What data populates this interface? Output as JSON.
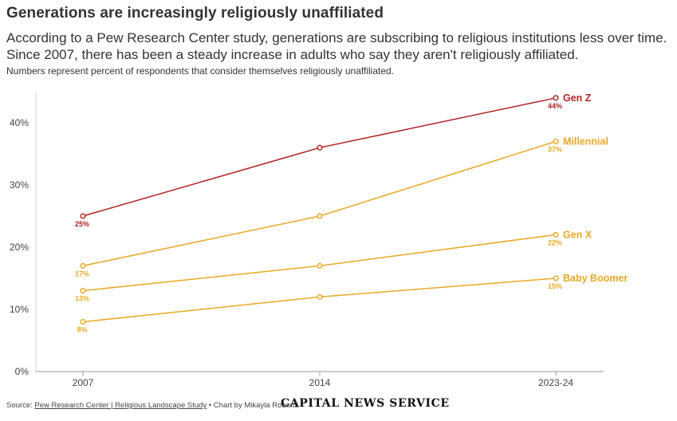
{
  "header": {
    "title": "Generations are increasingly religiously unaffiliated",
    "subtitle": "According to a Pew Research Center study, generations are subscribing to religious institutions less over time. Since 2007, there has been a steady increase in adults who say they aren't religiously affiliated.",
    "note": "Numbers represent percent of respondents that consider themselves religiously unaffiliated."
  },
  "footer": {
    "source_prefix": "Source: ",
    "source_link": "Pew Research Center | Religious Landscape Study",
    "credit": " • Chart by Mikayla Roberts",
    "brand": "CAPITAL NEWS SERVICE"
  },
  "chart_data": {
    "type": "line",
    "x": [
      "2007",
      "2014",
      "2023-24"
    ],
    "ylim": [
      0,
      45
    ],
    "yticks": [
      0,
      10,
      20,
      30,
      40
    ],
    "ytick_labels": [
      "0%",
      "10%",
      "20%",
      "30%",
      "40%"
    ],
    "grid": false,
    "series": [
      {
        "name": "Gen Z",
        "color": "#b22222",
        "values": [
          25,
          36,
          44
        ],
        "labels": [
          "25%",
          "",
          "44%"
        ]
      },
      {
        "name": "Millennial",
        "color": "#e8a925",
        "values": [
          17,
          25,
          37
        ],
        "labels": [
          "17%",
          "",
          "37%"
        ]
      },
      {
        "name": "Gen X",
        "color": "#e8a925",
        "values": [
          13,
          17,
          22
        ],
        "labels": [
          "13%",
          "",
          "22%"
        ]
      },
      {
        "name": "Baby Boomer",
        "color": "#e8a925",
        "values": [
          8,
          12,
          15
        ],
        "labels": [
          "8%",
          "",
          "15%"
        ]
      }
    ]
  }
}
